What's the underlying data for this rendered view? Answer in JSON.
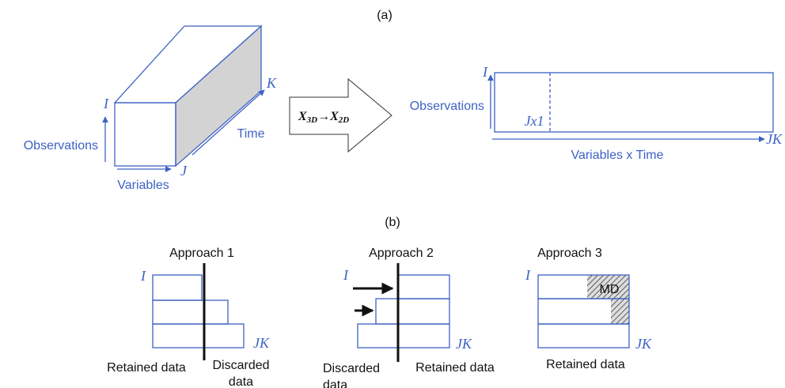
{
  "panel_a": {
    "label": "(a)",
    "cube": {
      "i": "I",
      "j": "J",
      "k": "K",
      "observations": "Observations",
      "variables": "Variables",
      "time": "Time"
    },
    "transform": {
      "from": "X",
      "from_sub": "3D",
      "arrow": "→",
      "to": "X",
      "to_sub": "2D"
    },
    "matrix": {
      "i": "I",
      "observations": "Observations",
      "jx1": "Jx1",
      "jk": "JK",
      "variables_time": "Variables x Time"
    }
  },
  "panel_b": {
    "label": "(b)",
    "approaches": [
      {
        "title": "Approach 1",
        "i": "I",
        "jk": "JK",
        "retained": "Retained data",
        "discarded": "Discarded data"
      },
      {
        "title": "Approach 2",
        "i": "I",
        "jk": "JK",
        "discarded": "Discarded data",
        "retained": "Retained data"
      },
      {
        "title": "Approach 3",
        "i": "I",
        "jk": "JK",
        "missing": "MD",
        "retained": "Retained data"
      }
    ]
  }
}
